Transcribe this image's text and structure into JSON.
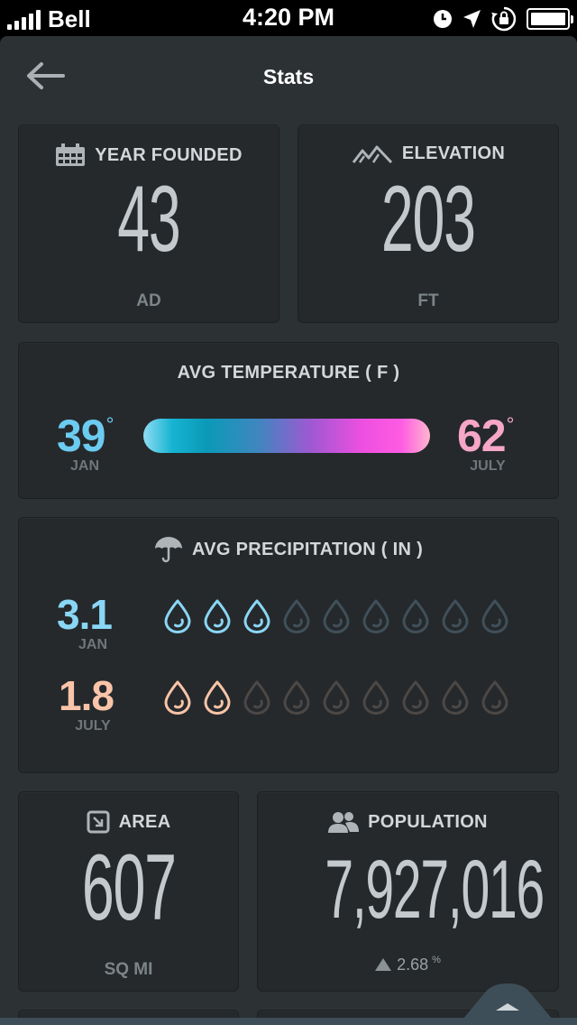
{
  "status_bar": {
    "carrier": "Bell",
    "time": "4:20 PM"
  },
  "nav": {
    "title": "Stats"
  },
  "year_founded": {
    "label": "YEAR FOUNDED",
    "value": "43",
    "unit": "AD"
  },
  "elevation": {
    "label": "ELEVATION",
    "value": "203",
    "unit": "FT"
  },
  "temperature": {
    "label": "AVG  TEMPERATURE ( F )",
    "low_value": "39",
    "low_month": "JAN",
    "high_value": "62",
    "high_month": "JULY",
    "degree_symbol": "°",
    "low_color": "#6ccbf0",
    "high_color": "#f6a6c6"
  },
  "precipitation": {
    "label": "AVG  PRECIPITATION ( IN )",
    "jan_value": "3.1",
    "jan_month": "JAN",
    "jan_filled_drops": 3,
    "july_value": "1.8",
    "july_month": "JULY",
    "july_filled_drops": 2,
    "total_drops": 9,
    "jan_color": "#8ad6f5",
    "july_color": "#f9c4a8"
  },
  "area": {
    "label": "AREA",
    "value": "607",
    "unit": "SQ MI"
  },
  "population": {
    "label": "POPULATION",
    "value": "7,927,016",
    "growth": "2.68",
    "growth_unit": "%"
  },
  "icons": {
    "back": "back-arrow-icon",
    "calendar": "calendar-icon",
    "mountain": "mountain-icon",
    "umbrella": "umbrella-icon",
    "area": "area-icon",
    "people": "people-icon",
    "drop": "water-drop-icon",
    "pull_up": "chevron-up-icon"
  }
}
